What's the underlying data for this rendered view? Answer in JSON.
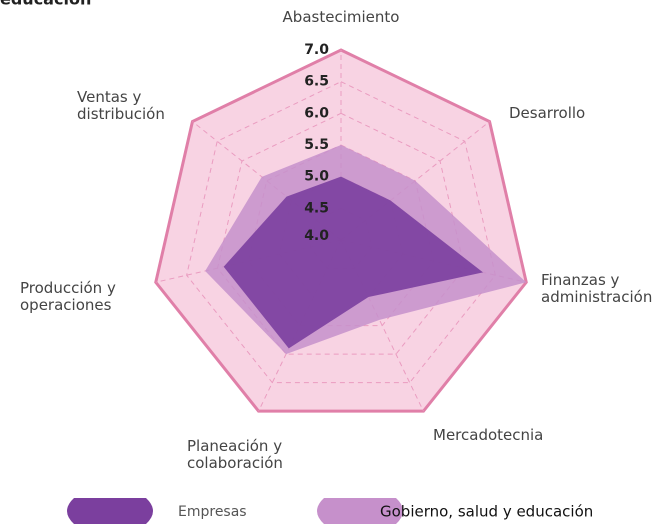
{
  "chart_data": {
    "type": "radar",
    "title": "educación",
    "categories": [
      "Abastecimiento",
      "Desarrollo",
      "Finanzas y administración",
      "Mercadotecnia",
      "Planeación y colaboración",
      "Producción y operaciones",
      "Ventas y distribución"
    ],
    "series": [
      {
        "name": "Gobierno, salud y educación",
        "color": "#c690cb",
        "values": [
          5.5,
          5.5,
          7.0,
          5.4,
          6.0,
          6.2,
          5.6
        ]
      },
      {
        "name": "Empresas",
        "color": "#7b3f9e",
        "values": [
          5.0,
          5.0,
          6.3,
          5.0,
          5.9,
          5.9,
          5.1
        ]
      }
    ],
    "rlim": [
      4,
      7
    ],
    "rticks": [
      {
        "value": 4,
        "label": "4.0"
      },
      {
        "value": 4.5,
        "label": "4.5"
      },
      {
        "value": 5,
        "label": "5.0"
      },
      {
        "value": 5.5,
        "label": "5.5"
      },
      {
        "value": 6,
        "label": "6.0"
      },
      {
        "value": 6.5,
        "label": "6.5"
      },
      {
        "value": 7,
        "label": "7.0"
      }
    ],
    "grid": true
  }
}
